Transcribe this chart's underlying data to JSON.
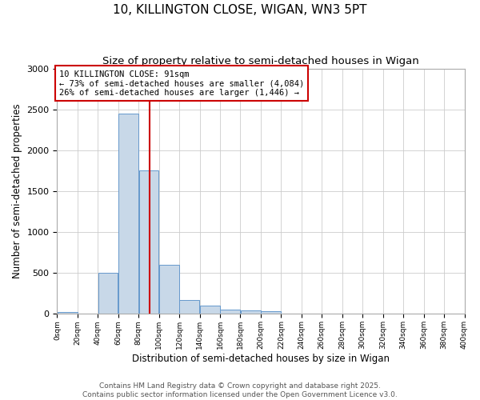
{
  "title1": "10, KILLINGTON CLOSE, WIGAN, WN3 5PT",
  "title2": "Size of property relative to semi-detached houses in Wigan",
  "xlabel": "Distribution of semi-detached houses by size in Wigan",
  "ylabel": "Number of semi-detached properties",
  "bar_edges": [
    0,
    20,
    40,
    60,
    80,
    100,
    120,
    140,
    160,
    180,
    200,
    220,
    240,
    260,
    280,
    300,
    320,
    340,
    360,
    380,
    400
  ],
  "bar_heights": [
    20,
    0,
    500,
    2450,
    1750,
    600,
    170,
    100,
    50,
    40,
    30,
    0,
    0,
    0,
    0,
    0,
    0,
    0,
    0,
    0
  ],
  "bar_color": "#c8d8e8",
  "bar_edgecolor": "#6699cc",
  "property_size": 91,
  "red_line_color": "#cc0000",
  "annotation_text": "10 KILLINGTON CLOSE: 91sqm\n← 73% of semi-detached houses are smaller (4,084)\n26% of semi-detached houses are larger (1,446) →",
  "annotation_box_color": "#ffffff",
  "annotation_box_edgecolor": "#cc0000",
  "ylim": [
    0,
    3000
  ],
  "yticks": [
    0,
    500,
    1000,
    1500,
    2000,
    2500,
    3000
  ],
  "xlim": [
    0,
    400
  ],
  "background_color": "#ffffff",
  "grid_color": "#cccccc",
  "footer_text": "Contains HM Land Registry data © Crown copyright and database right 2025.\nContains public sector information licensed under the Open Government Licence v3.0.",
  "title1_fontsize": 11,
  "title2_fontsize": 9.5,
  "xlabel_fontsize": 8.5,
  "ylabel_fontsize": 8.5,
  "annotation_fontsize": 7.5,
  "footer_fontsize": 6.5
}
